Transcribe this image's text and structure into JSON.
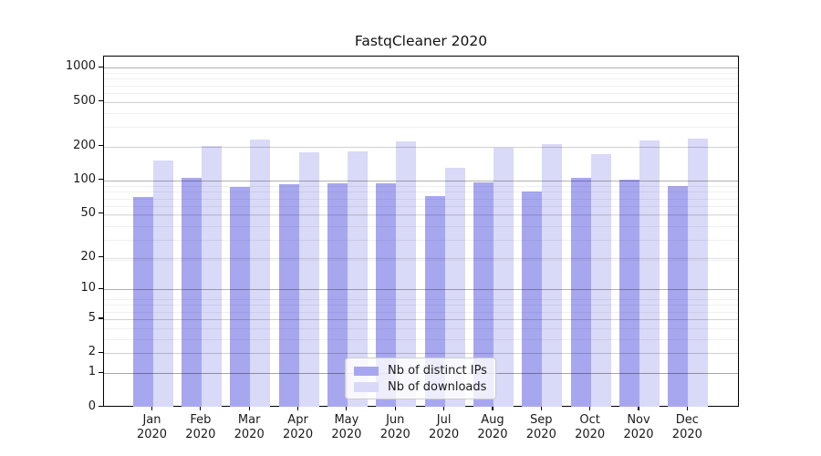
{
  "chart_data": {
    "type": "bar",
    "title": "FastqCleaner 2020",
    "categories": [
      "Jan",
      "Feb",
      "Mar",
      "Apr",
      "May",
      "Jun",
      "Jul",
      "Aug",
      "Sep",
      "Oct",
      "Nov",
      "Dec"
    ],
    "category_year": "2020",
    "series": [
      {
        "name": "Nb of distinct IPs",
        "color": "#a7a7f0",
        "values": [
          71,
          106,
          88,
          92,
          95,
          94,
          73,
          96,
          80,
          105,
          102,
          89
        ]
      },
      {
        "name": "Nb of downloads",
        "color": "#d9d9f8",
        "values": [
          152,
          205,
          230,
          178,
          180,
          222,
          130,
          196,
          212,
          172,
          227,
          236
        ]
      }
    ],
    "xlabel": "",
    "ylabel": "",
    "y_ticks": [
      0,
      1,
      2,
      5,
      10,
      20,
      50,
      100,
      200,
      500,
      1000
    ],
    "y_scale": "log10(1+y)",
    "ylim": [
      0,
      1250
    ],
    "grid": true,
    "legend_position": "lower center",
    "colors": {
      "axis": "#000000",
      "text": "#1a1a1a",
      "grid_major": "#b0b0b0",
      "grid_mid": "#dddddd",
      "grid_minor": "#efefef",
      "legend_border": "#cccccc",
      "background": "#ffffff"
    }
  }
}
